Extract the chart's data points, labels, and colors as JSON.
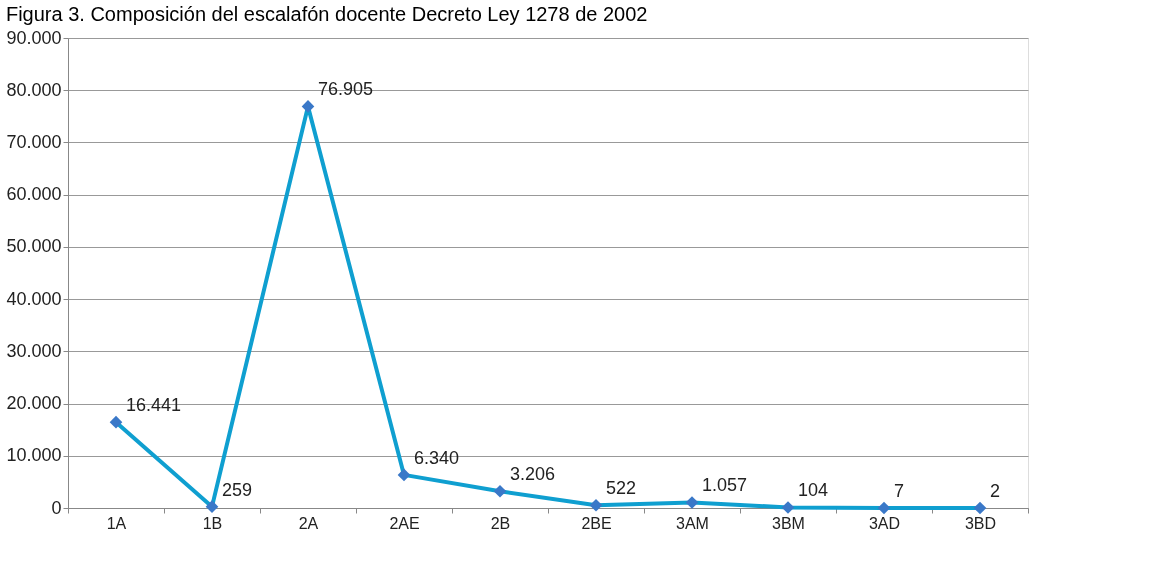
{
  "chart_data": {
    "type": "line",
    "title": "Figura 3. Composición del escalafón docente Decreto Ley 1278 de 2002",
    "categories": [
      "1A",
      "1B",
      "2A",
      "2AE",
      "2B",
      "2BE",
      "3AM",
      "3BM",
      "3AD",
      "3BD"
    ],
    "series": [
      {
        "color": "#0f9fd0",
        "values": [
          16441,
          259,
          76905,
          6340,
          3206,
          522,
          1057,
          104,
          7,
          2
        ],
        "value_labels": [
          "16.441",
          "259",
          "76.905",
          "6.340",
          "3.206",
          "522",
          "1.057",
          "104",
          "7",
          "2"
        ]
      }
    ],
    "ylim": [
      0,
      90000
    ],
    "yticks": [
      0,
      {
        "value": 10000,
        "label": "10.000"
      },
      {
        "value": 20000,
        "label": "20.000"
      },
      {
        "value": 30000,
        "label": "30.000"
      },
      {
        "value": 40000,
        "label": "40.000"
      },
      {
        "value": 50000,
        "label": "50.000"
      },
      {
        "value": 60000,
        "label": "60.000"
      },
      {
        "value": 70000,
        "label": "70.000"
      },
      {
        "value": 80000,
        "label": "80.000"
      },
      {
        "value": 90000,
        "label": "90.000"
      }
    ],
    "grid": "y",
    "marker": "diamond",
    "line_style": "solid"
  }
}
